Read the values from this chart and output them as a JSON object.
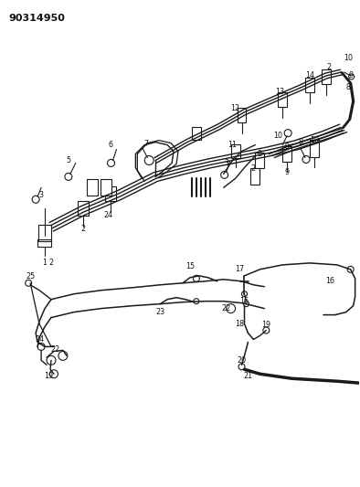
{
  "title": "90314950",
  "bg_color": "#ffffff",
  "line_color": "#1a1a1a",
  "fig_width": 3.94,
  "fig_height": 5.33,
  "dpi": 100
}
